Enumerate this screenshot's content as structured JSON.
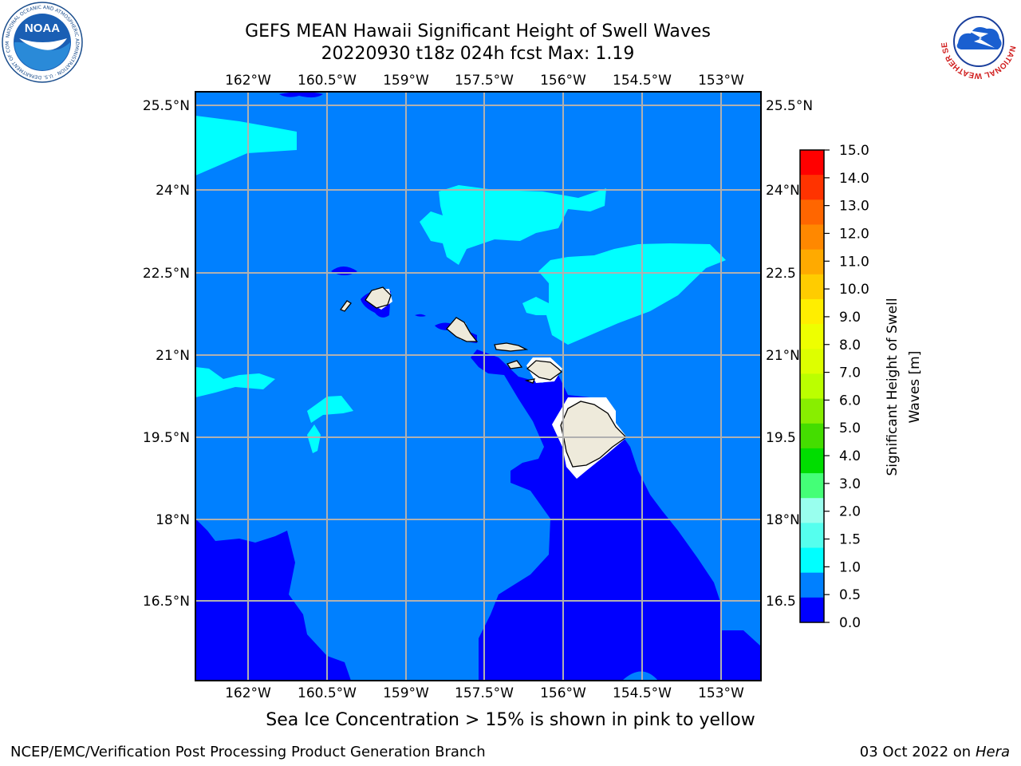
{
  "header": {
    "title_line1": "GEFS MEAN Hawaii Significant Height of Swell Waves",
    "title_line2": "20220930 t18z 024h fcst   Max: 1.19"
  },
  "logos": {
    "left": {
      "name": "noaa-logo",
      "text": "NOAA",
      "ring_text": "NATIONAL OCEANIC AND ATMOSPHERIC ADMINISTRATION · U.S. DEPARTMENT OF COMMERCE"
    },
    "right": {
      "name": "nws-logo",
      "ring_text": "NATIONAL WEATHER SERVICE"
    }
  },
  "map": {
    "lon_labels": [
      "162°W",
      "160.5°W",
      "159°W",
      "157.5°W",
      "156°W",
      "154.5°W",
      "153°W"
    ],
    "lat_labels": [
      "25.5°N",
      "24°N",
      "22.5°N",
      "21°N",
      "19.5°N",
      "18°N",
      "16.5°N"
    ],
    "lat_labels_right": [
      "25.5°N",
      "24°N",
      "22.5",
      "21°N",
      "19.5",
      "18°N",
      "16.5"
    ],
    "colors": {
      "ocean_0_5": "#0000ff",
      "ocean_0_5_1": "#0080ff",
      "ocean_1_1_5": "#00ffff",
      "land": "#eeeadb",
      "gridline": "#b0b0b0"
    }
  },
  "colorbar": {
    "label_line1": "Significant Height of Swell",
    "label_line2": "Waves [m]",
    "ticks": [
      "15.0",
      "14.0",
      "13.0",
      "12.0",
      "11.0",
      "10.0",
      "9.0",
      "8.0",
      "7.0",
      "6.0",
      "5.0",
      "4.0",
      "3.0",
      "2.0",
      "1.5",
      "1.0",
      "0.5",
      "0.0"
    ],
    "colors_top_to_bottom": [
      "#ff0000",
      "#ff3300",
      "#ff6600",
      "#ff8800",
      "#ffaa00",
      "#ffcc00",
      "#ffee00",
      "#eeff00",
      "#ddff00",
      "#bbff00",
      "#88ee00",
      "#44dd00",
      "#00dd00",
      "#44ff77",
      "#99ffee",
      "#55ffee",
      "#00ffff",
      "#0080ff",
      "#0000ff"
    ]
  },
  "subtitle": "Sea Ice Concentration > 15% is shown in pink to yellow",
  "footer": {
    "left": "NCEP/EMC/Verification Post Processing Product Generation Branch",
    "right_date": "03 Oct 2022 on",
    "right_host": "Hera"
  }
}
